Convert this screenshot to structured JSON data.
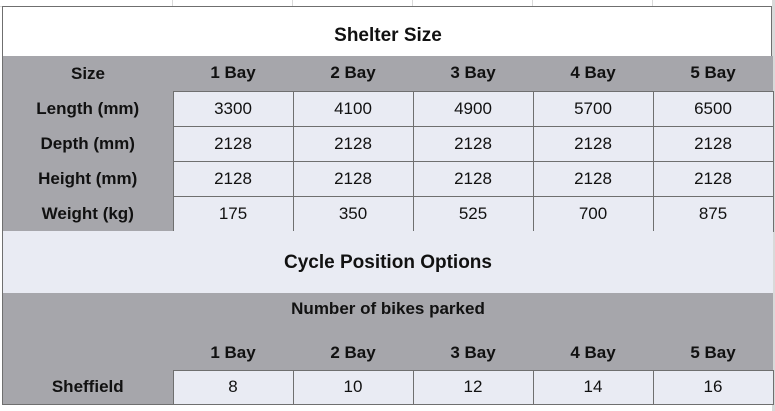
{
  "shelter": {
    "title": "Shelter Size",
    "header": [
      "Size",
      "1 Bay",
      "2 Bay",
      "3 Bay",
      "4 Bay",
      "5 Bay"
    ],
    "rows": [
      {
        "label": "Length (mm)",
        "values": [
          "3300",
          "4100",
          "4900",
          "5700",
          "6500"
        ]
      },
      {
        "label": "Depth (mm)",
        "values": [
          "2128",
          "2128",
          "2128",
          "2128",
          "2128"
        ]
      },
      {
        "label": "Height (mm)",
        "values": [
          "2128",
          "2128",
          "2128",
          "2128",
          "2128"
        ]
      },
      {
        "label": "Weight (kg)",
        "values": [
          "175",
          "350",
          "525",
          "700",
          "875"
        ]
      }
    ]
  },
  "cycle": {
    "title": "Cycle Position Options",
    "subtitle": "Number of bikes parked",
    "header": [
      "",
      "1 Bay",
      "2 Bay",
      "3 Bay",
      "4 Bay",
      "5 Bay"
    ],
    "rows": [
      {
        "label": "Sheffield",
        "values": [
          "8",
          "10",
          "12",
          "14",
          "16"
        ]
      }
    ]
  },
  "colors": {
    "header_grey": "#a6a6ab",
    "cell_fill": "#e9ebf3",
    "border": "#6f6f6f"
  }
}
